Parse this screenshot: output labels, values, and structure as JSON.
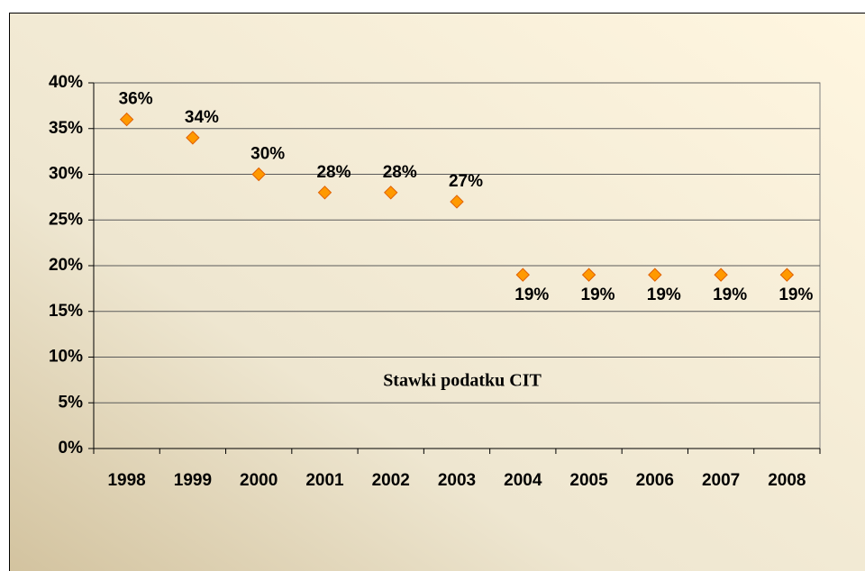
{
  "chart_data": {
    "type": "scatter",
    "title": "Stawki podatku CIT",
    "categories": [
      "1998",
      "1999",
      "2000",
      "2001",
      "2002",
      "2003",
      "2004",
      "2005",
      "2006",
      "2007",
      "2008"
    ],
    "values": [
      36,
      34,
      30,
      28,
      28,
      27,
      19,
      19,
      19,
      19,
      19
    ],
    "value_labels": [
      "36%",
      "34%",
      "30%",
      "28%",
      "28%",
      "27%",
      "19%",
      "19%",
      "19%",
      "19%",
      "19%"
    ],
    "color": "#ff9900",
    "ylim": [
      0,
      40
    ],
    "yticks": [
      {
        "value": 0,
        "label": "0%"
      },
      {
        "value": 5,
        "label": "5%"
      },
      {
        "value": 10,
        "label": "10%"
      },
      {
        "value": 15,
        "label": "15%"
      },
      {
        "value": 20,
        "label": "20%"
      },
      {
        "value": 25,
        "label": "25%"
      },
      {
        "value": 30,
        "label": "30%"
      },
      {
        "value": 35,
        "label": "35%"
      },
      {
        "value": 40,
        "label": "40%"
      }
    ],
    "grid": true
  }
}
